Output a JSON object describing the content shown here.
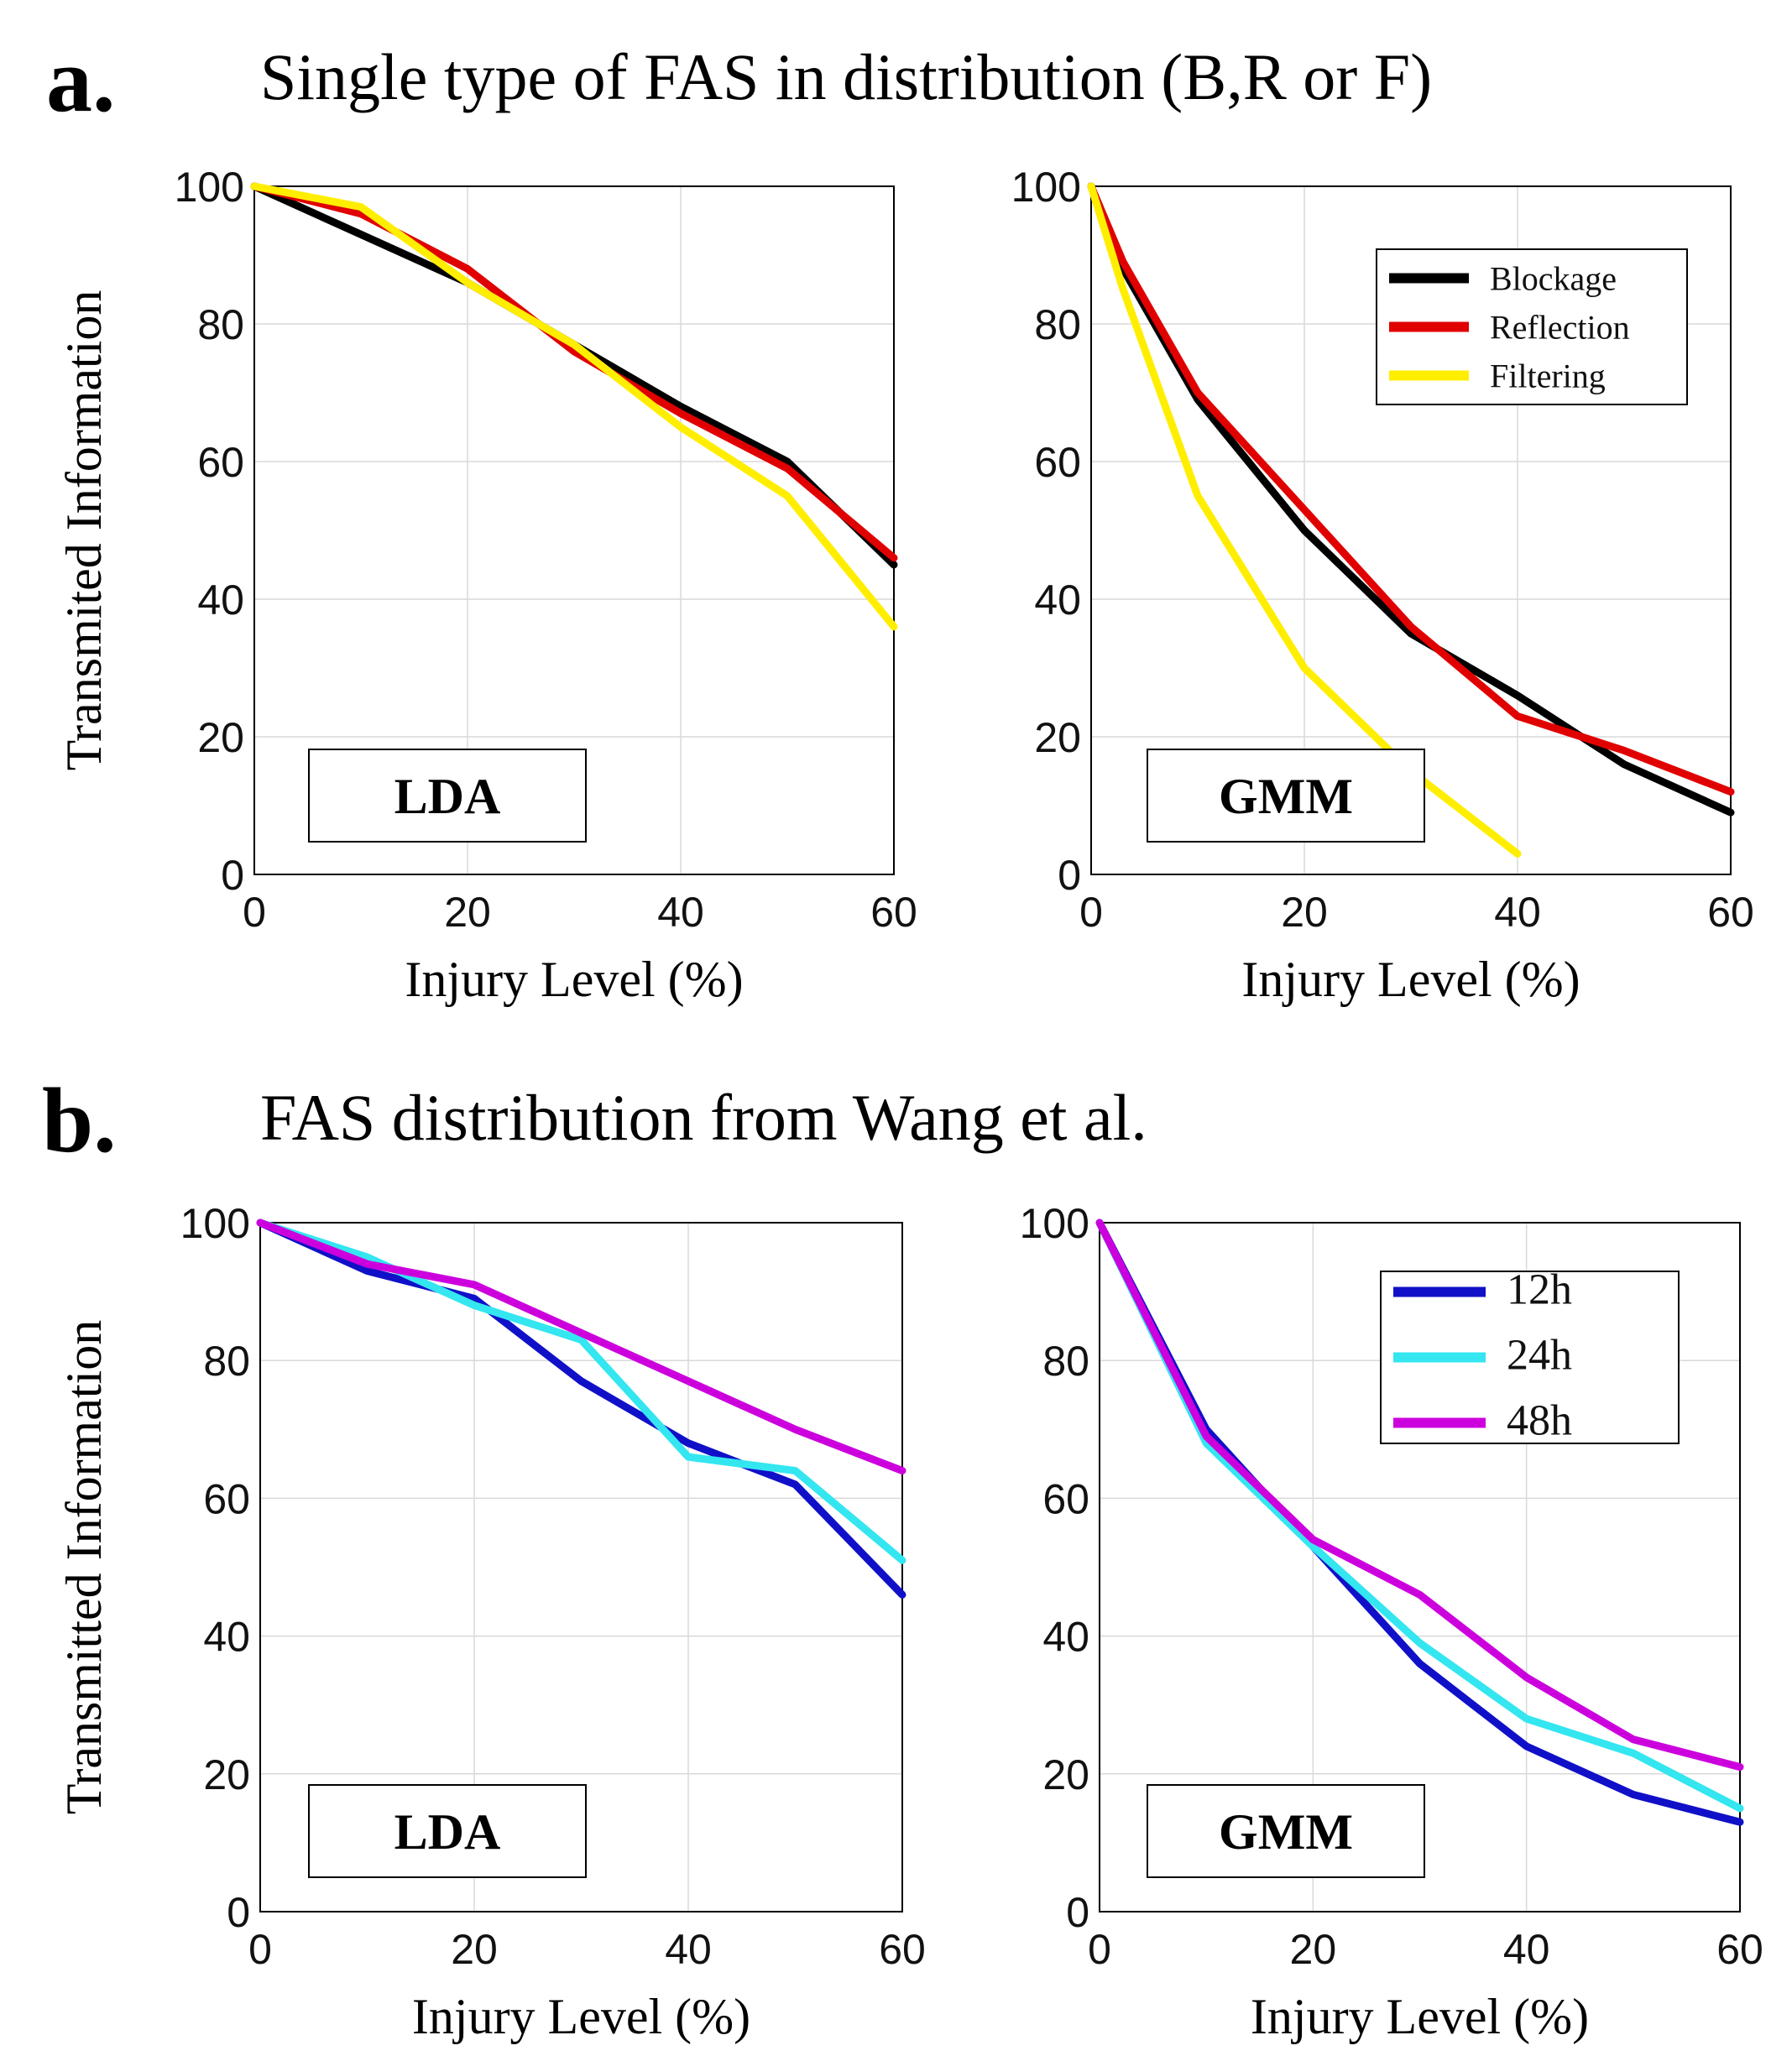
{
  "panels": [
    {
      "letter": "a.",
      "title": "Single type of FAS in distribution (B,R or F)"
    },
    {
      "letter": "b.",
      "title": "FAS distribution from Wang et al."
    }
  ],
  "chart_data": [
    {
      "type": "line",
      "panel": "a",
      "tag": "LDA",
      "xlabel": "Injury Level (%)",
      "ylabel": "Transmited Information",
      "xlim": [
        0,
        60
      ],
      "ylim": [
        0,
        100
      ],
      "xticks": [
        0,
        20,
        40,
        60
      ],
      "yticks": [
        0,
        20,
        40,
        60,
        80,
        100
      ],
      "grid": true,
      "series": [
        {
          "name": "Blockage",
          "color": "#000000",
          "x": [
            0,
            10,
            20,
            30,
            40,
            50,
            60
          ],
          "y": [
            100,
            93,
            86,
            77,
            68,
            60,
            45
          ]
        },
        {
          "name": "Reflection",
          "color": "#e00000",
          "x": [
            0,
            10,
            20,
            30,
            40,
            50,
            60
          ],
          "y": [
            100,
            96,
            88,
            76,
            67,
            59,
            46
          ]
        },
        {
          "name": "Filtering",
          "color": "#ffee00",
          "x": [
            0,
            10,
            20,
            30,
            40,
            50,
            60
          ],
          "y": [
            100,
            97,
            86,
            77,
            65,
            55,
            36
          ]
        }
      ]
    },
    {
      "type": "line",
      "panel": "a",
      "tag": "GMM",
      "xlabel": "Injury Level (%)",
      "ylabel": "",
      "xlim": [
        0,
        60
      ],
      "ylim": [
        0,
        100
      ],
      "xticks": [
        0,
        20,
        40,
        60
      ],
      "yticks": [
        0,
        20,
        40,
        60,
        80,
        100
      ],
      "grid": true,
      "legend": "top-right",
      "series": [
        {
          "name": "Blockage",
          "color": "#000000",
          "x": [
            0,
            3,
            10,
            20,
            30,
            40,
            50,
            60
          ],
          "y": [
            100,
            88,
            69,
            50,
            35,
            26,
            16,
            9
          ]
        },
        {
          "name": "Reflection",
          "color": "#e00000",
          "x": [
            0,
            3,
            10,
            20,
            30,
            40,
            50,
            60
          ],
          "y": [
            100,
            89,
            70,
            53,
            36,
            23,
            18,
            12
          ]
        },
        {
          "name": "Filtering",
          "color": "#ffee00",
          "x": [
            0,
            3,
            10,
            20,
            30,
            40
          ],
          "y": [
            100,
            85,
            55,
            30,
            15,
            3
          ]
        }
      ]
    },
    {
      "type": "line",
      "panel": "b",
      "tag": "LDA",
      "xlabel": "Injury Level (%)",
      "ylabel": "Transmitted Information",
      "xlim": [
        0,
        60
      ],
      "ylim": [
        0,
        100
      ],
      "xticks": [
        0,
        20,
        40,
        60
      ],
      "yticks": [
        0,
        20,
        40,
        60,
        80,
        100
      ],
      "grid": true,
      "series": [
        {
          "name": "12h",
          "color": "#1010c8",
          "x": [
            0,
            10,
            20,
            30,
            40,
            50,
            60
          ],
          "y": [
            100,
            93,
            89,
            77,
            68,
            62,
            46
          ]
        },
        {
          "name": "24h",
          "color": "#33e6f0",
          "x": [
            0,
            10,
            20,
            30,
            40,
            50,
            60
          ],
          "y": [
            100,
            95,
            88,
            83,
            66,
            64,
            51
          ]
        },
        {
          "name": "48h",
          "color": "#cc00dd",
          "x": [
            0,
            10,
            20,
            30,
            40,
            50,
            60
          ],
          "y": [
            100,
            94,
            91,
            84,
            77,
            70,
            64
          ]
        }
      ]
    },
    {
      "type": "line",
      "panel": "b",
      "tag": "GMM",
      "xlabel": "Injury Level (%)",
      "ylabel": "",
      "xlim": [
        0,
        60
      ],
      "ylim": [
        0,
        100
      ],
      "xticks": [
        0,
        20,
        40,
        60
      ],
      "yticks": [
        0,
        20,
        40,
        60,
        80,
        100
      ],
      "grid": true,
      "legend": "top-right",
      "series": [
        {
          "name": "12h",
          "color": "#1010c8",
          "x": [
            0,
            10,
            20,
            30,
            40,
            50,
            60
          ],
          "y": [
            100,
            70,
            53,
            36,
            24,
            17,
            13
          ]
        },
        {
          "name": "24h",
          "color": "#33e6f0",
          "x": [
            0,
            10,
            20,
            30,
            40,
            50,
            60
          ],
          "y": [
            100,
            68,
            53,
            39,
            28,
            23,
            15
          ]
        },
        {
          "name": "48h",
          "color": "#cc00dd",
          "x": [
            0,
            10,
            20,
            30,
            40,
            50,
            60
          ],
          "y": [
            100,
            69,
            54,
            46,
            34,
            25,
            21
          ]
        }
      ]
    }
  ]
}
